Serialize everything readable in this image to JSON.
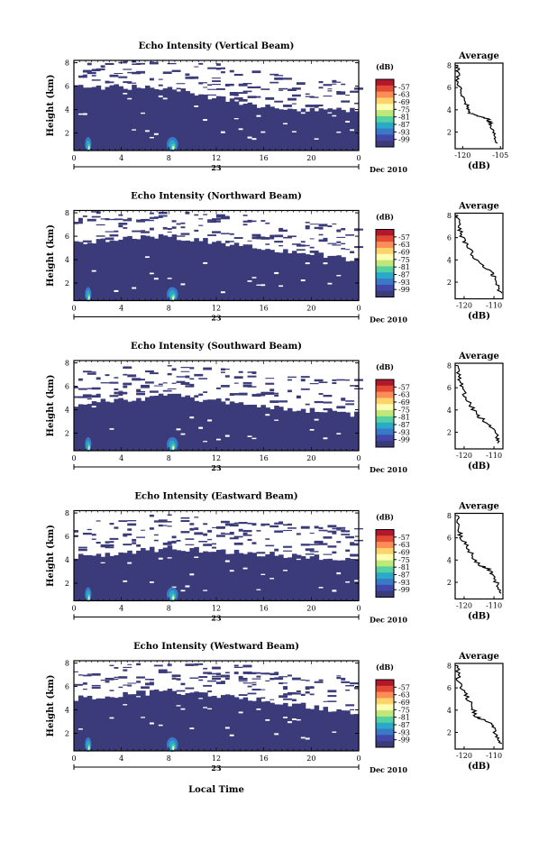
{
  "figure": {
    "colorbar_unit": "(dB)",
    "colorbar_levels": [
      "-57",
      "-63",
      "-69",
      "-75",
      "-81",
      "-87",
      "-93",
      "-99"
    ],
    "colorbar_colors": [
      "#b2182b",
      "#e34a33",
      "#fc8d59",
      "#fdd36a",
      "#ffffb2",
      "#bfe87a",
      "#55d0a0",
      "#2aa9c8",
      "#3a78c8",
      "#4148a8",
      "#3b3b7a"
    ],
    "plot_fill": "#3b3b7a",
    "xlabel": "Local Time",
    "date_label": "Dec 2010",
    "day_label": "23",
    "profile_title": "Average",
    "profile_xlabel": "(dB)"
  },
  "chart_data": [
    {
      "type": "heatmap",
      "title": "Echo Intensity (Vertical Beam)",
      "ylabel": "Height (km)",
      "xticks": [
        "0",
        "4",
        "8",
        "12",
        "16",
        "20",
        "0"
      ],
      "yticks": [
        "2",
        "4",
        "6",
        "8"
      ],
      "xlim": [
        0,
        24
      ],
      "ylim": [
        0.5,
        8.2
      ],
      "cloud_top_km": [
        6.0,
        5.8,
        4.2,
        3.9
      ],
      "profile": {
        "xticks": [
          "-120",
          "-105"
        ],
        "xlim": [
          -123,
          -104
        ],
        "ylim": [
          0.5,
          8.2
        ],
        "yticks": [
          "2",
          "4",
          "6",
          "8"
        ],
        "values": [
          [
            -106,
            1
          ],
          [
            -107,
            1.5
          ],
          [
            -108,
            2.2
          ],
          [
            -109,
            2.8
          ],
          [
            -110,
            3.2
          ],
          [
            -114,
            3.4
          ],
          [
            -117,
            3.7
          ],
          [
            -118,
            4.3
          ],
          [
            -120,
            5
          ],
          [
            -121,
            5.8
          ],
          [
            -122,
            6.5
          ],
          [
            -122,
            7.4
          ],
          [
            -122,
            8
          ]
        ]
      }
    },
    {
      "type": "heatmap",
      "title": "Echo Intensity (Northward Beam)",
      "ylabel": "Height (km)",
      "xticks": [
        "0",
        "4",
        "8",
        "12",
        "16",
        "20",
        "0"
      ],
      "yticks": [
        "2",
        "4",
        "6",
        "8"
      ],
      "xlim": [
        0,
        24
      ],
      "ylim": [
        0.5,
        8.2
      ],
      "cloud_top_km": [
        5.5,
        6.0,
        5.0,
        4.0
      ],
      "profile": {
        "xticks": [
          "-120",
          "-110"
        ],
        "xlim": [
          -123,
          -107
        ],
        "ylim": [
          0.5,
          8.2
        ],
        "yticks": [
          "2",
          "4",
          "6",
          "8"
        ],
        "values": [
          [
            -108,
            1
          ],
          [
            -109,
            1.8
          ],
          [
            -110,
            2.5
          ],
          [
            -111,
            3
          ],
          [
            -114,
            3.5
          ],
          [
            -117,
            4.2
          ],
          [
            -118,
            5
          ],
          [
            -120,
            5.6
          ],
          [
            -121,
            6.4
          ],
          [
            -122,
            7.2
          ],
          [
            -122,
            8
          ]
        ]
      }
    },
    {
      "type": "heatmap",
      "title": "Echo Intensity (Southward Beam)",
      "ylabel": "Height (km)",
      "xticks": [
        "0",
        "4",
        "8",
        "12",
        "16",
        "20",
        "0"
      ],
      "yticks": [
        "2",
        "4",
        "6",
        "8"
      ],
      "xlim": [
        0,
        24
      ],
      "ylim": [
        0.5,
        8.2
      ],
      "cloud_top_km": [
        4.5,
        5.2,
        4.3,
        3.6
      ],
      "profile": {
        "xticks": [
          "-120",
          "-110"
        ],
        "xlim": [
          -123,
          -107
        ],
        "ylim": [
          0.5,
          8.2
        ],
        "yticks": [
          "2",
          "4",
          "6",
          "8"
        ],
        "values": [
          [
            -108,
            1
          ],
          [
            -109,
            1.6
          ],
          [
            -111,
            2.4
          ],
          [
            -113,
            3
          ],
          [
            -116,
            3.6
          ],
          [
            -118,
            4.5
          ],
          [
            -120,
            5.4
          ],
          [
            -121,
            6.2
          ],
          [
            -122,
            7
          ],
          [
            -122,
            8
          ]
        ]
      }
    },
    {
      "type": "heatmap",
      "title": "Echo Intensity (Eastward Beam)",
      "ylabel": "Height (km)",
      "xticks": [
        "0",
        "4",
        "8",
        "12",
        "16",
        "20",
        "0"
      ],
      "yticks": [
        "2",
        "4",
        "6",
        "8"
      ],
      "xlim": [
        0,
        24
      ],
      "ylim": [
        0.5,
        8.2
      ],
      "cloud_top_km": [
        4.3,
        5.0,
        4.5,
        4.0
      ],
      "profile": {
        "xticks": [
          "-120",
          "-110"
        ],
        "xlim": [
          -123,
          -107
        ],
        "ylim": [
          0.5,
          8.2
        ],
        "yticks": [
          "2",
          "4",
          "6",
          "8"
        ],
        "values": [
          [
            -108,
            1
          ],
          [
            -109,
            1.8
          ],
          [
            -110,
            2.6
          ],
          [
            -112,
            3.2
          ],
          [
            -115,
            3.6
          ],
          [
            -117,
            4.3
          ],
          [
            -119,
            5.2
          ],
          [
            -121,
            6
          ],
          [
            -122,
            6.8
          ],
          [
            -122,
            8
          ]
        ]
      }
    },
    {
      "type": "heatmap",
      "title": "Echo Intensity (Westward Beam)",
      "ylabel": "Height (km)",
      "xticks": [
        "0",
        "4",
        "8",
        "12",
        "16",
        "20",
        "0"
      ],
      "yticks": [
        "2",
        "4",
        "6",
        "8"
      ],
      "xlim": [
        0,
        24
      ],
      "ylim": [
        0.5,
        8.2
      ],
      "cloud_top_km": [
        5.0,
        5.6,
        4.8,
        3.8
      ],
      "profile": {
        "xticks": [
          "-120",
          "-110"
        ],
        "xlim": [
          -123,
          -107
        ],
        "ylim": [
          0.5,
          8.2
        ],
        "yticks": [
          "2",
          "4",
          "6",
          "8"
        ],
        "values": [
          [
            -108,
            1
          ],
          [
            -109,
            1.6
          ],
          [
            -110,
            2.4
          ],
          [
            -112,
            3
          ],
          [
            -116,
            3.4
          ],
          [
            -117,
            4.2
          ],
          [
            -119,
            5.2
          ],
          [
            -121,
            6
          ],
          [
            -122,
            7
          ],
          [
            -122,
            8
          ]
        ]
      }
    }
  ]
}
